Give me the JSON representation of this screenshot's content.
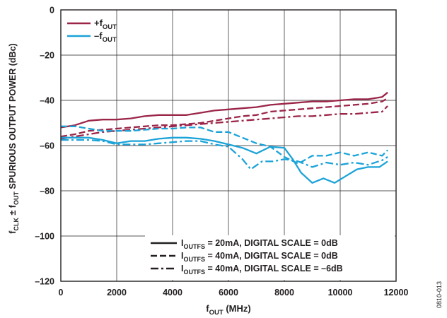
{
  "chart_data": {
    "type": "line",
    "xlabel": {
      "main": "f",
      "sub": "OUT",
      "rest": " (MHz)"
    },
    "ylabel": {
      "parts": [
        {
          "t": "f",
          "sub": false
        },
        {
          "t": "CLK",
          "sub": true
        },
        {
          "t": " ± f",
          "sub": false
        },
        {
          "t": "OUT",
          "sub": true
        },
        {
          "t": " SPURIOUS OUTPUT POWER (dBc)",
          "sub": false
        }
      ]
    },
    "xlim": [
      0,
      12000
    ],
    "ylim": [
      -120,
      0
    ],
    "x_ticks": [
      0,
      2000,
      4000,
      6000,
      8000,
      10000,
      12000
    ],
    "y_ticks": [
      0,
      -20,
      -40,
      -60,
      -80,
      -100,
      -120
    ],
    "tick_labels_x": [
      "0",
      "2000",
      "4000",
      "6000",
      "8000",
      "10000",
      "12000"
    ],
    "tick_labels_y": [
      "0",
      "–20",
      "–40",
      "–60",
      "–80",
      "–100",
      "–120"
    ],
    "grid": true,
    "colors": {
      "plus": "#9b2548",
      "minus": "#1ba3d8",
      "ink": "#231f20"
    },
    "legend_color": {
      "position": "top-left",
      "entries": [
        {
          "key": "plus",
          "sign": "+f",
          "sub": "OUT"
        },
        {
          "key": "minus",
          "sign": "–f",
          "sub": "OUT"
        }
      ]
    },
    "legend_style": {
      "position": "bottom-right",
      "entries": [
        {
          "dash": "solid",
          "pre": "I",
          "sub": "OUTFS",
          "post": " = 20mA, DIGITAL SCALE = 0dB"
        },
        {
          "dash": "dashed",
          "pre": "I",
          "sub": "OUTFS",
          "post": " = 40mA, DIGITAL SCALE = 0dB"
        },
        {
          "dash": "dashdot",
          "pre": "I",
          "sub": "OUTFS",
          "post": " = 40mA, DIGITAL SCALE = –6dB"
        }
      ]
    },
    "series": [
      {
        "color": "plus",
        "dash": "solid",
        "x": [
          0,
          500,
          1000,
          1500,
          2000,
          2500,
          3000,
          3500,
          4000,
          4500,
          5000,
          5500,
          6000,
          6500,
          7000,
          7500,
          8000,
          8500,
          9000,
          9500,
          10000,
          10500,
          11000,
          11500,
          11700
        ],
        "y": [
          -52,
          -51,
          -49,
          -48.5,
          -48.5,
          -48,
          -47,
          -46.5,
          -46.5,
          -46.5,
          -45.5,
          -44.5,
          -44,
          -43.5,
          -43,
          -42,
          -41.5,
          -41,
          -40.5,
          -40.5,
          -40,
          -39.5,
          -39.5,
          -38.5,
          -36.5
        ]
      },
      {
        "color": "plus",
        "dash": "dashed",
        "x": [
          0,
          500,
          1000,
          1500,
          2000,
          2500,
          3000,
          3500,
          4000,
          4500,
          5000,
          5500,
          6000,
          6500,
          7000,
          7500,
          8000,
          8500,
          9000,
          9500,
          10000,
          10500,
          11000,
          11500,
          11700
        ],
        "y": [
          -56,
          -55,
          -53.5,
          -53,
          -52.5,
          -52,
          -51.5,
          -51,
          -51,
          -50.5,
          -50,
          -49,
          -48,
          -47,
          -46.5,
          -45,
          -44.5,
          -44,
          -43.5,
          -43,
          -42.5,
          -42,
          -41.5,
          -40.5,
          -39
        ]
      },
      {
        "color": "plus",
        "dash": "dashdot",
        "x": [
          0,
          500,
          1000,
          1500,
          2000,
          2500,
          3000,
          3500,
          4000,
          4500,
          5000,
          5500,
          6000,
          6500,
          7000,
          7500,
          8000,
          8500,
          9000,
          9500,
          10000,
          10500,
          11000,
          11500,
          11700
        ],
        "y": [
          -57,
          -56,
          -55,
          -54,
          -53.5,
          -53,
          -52.5,
          -52,
          -51.5,
          -51,
          -50.5,
          -50,
          -49.5,
          -49,
          -48.5,
          -48,
          -47.5,
          -47,
          -47,
          -46.5,
          -46,
          -46,
          -45.5,
          -45,
          -42.5
        ]
      },
      {
        "color": "minus",
        "dash": "solid",
        "x": [
          0,
          500,
          1000,
          1500,
          2000,
          2500,
          3000,
          3500,
          4000,
          4500,
          5000,
          5500,
          6000,
          6500,
          7000,
          7500,
          8000,
          8300,
          8600,
          9000,
          9400,
          9800,
          10200,
          10600,
          11000,
          11400,
          11700
        ],
        "y": [
          -56.5,
          -56.5,
          -56.5,
          -57.5,
          -59,
          -58,
          -58,
          -57,
          -56.5,
          -56.5,
          -57,
          -58,
          -59.5,
          -61,
          -63.5,
          -60.5,
          -61,
          -66,
          -72,
          -76.5,
          -74.5,
          -76.5,
          -73.5,
          -70.5,
          -69.5,
          -69.5,
          -67
        ]
      },
      {
        "color": "minus",
        "dash": "dashed",
        "x": [
          0,
          500,
          1000,
          1500,
          2000,
          2500,
          3000,
          3500,
          4000,
          4500,
          5000,
          5500,
          6000,
          6500,
          7000,
          7500,
          8000,
          8500,
          9000,
          9500,
          10000,
          10500,
          11000,
          11500,
          11700
        ],
        "y": [
          -51.5,
          -51.5,
          -52.5,
          -53.5,
          -53.5,
          -53.5,
          -53,
          -52.5,
          -52.5,
          -52,
          -52,
          -54,
          -54,
          -56.5,
          -59,
          -60.5,
          -65,
          -68,
          -64.5,
          -64.5,
          -63,
          -64.5,
          -63,
          -64.5,
          -62
        ]
      },
      {
        "color": "minus",
        "dash": "dashdot",
        "x": [
          0,
          500,
          1000,
          1500,
          2000,
          2500,
          3000,
          3500,
          4000,
          4500,
          5000,
          5500,
          6000,
          6500,
          6800,
          7200,
          7600,
          8000,
          8500,
          9000,
          9500,
          10000,
          10500,
          11000,
          11500,
          11700
        ],
        "y": [
          -57.5,
          -57.5,
          -57.5,
          -58,
          -59.5,
          -59.5,
          -59.5,
          -59,
          -58.5,
          -58,
          -58,
          -59.5,
          -60.5,
          -66,
          -70.5,
          -67,
          -67,
          -66,
          -67,
          -69.5,
          -67.5,
          -68.5,
          -67.5,
          -68.5,
          -66.5,
          -65
        ]
      }
    ],
    "side_label": "0810-013"
  }
}
